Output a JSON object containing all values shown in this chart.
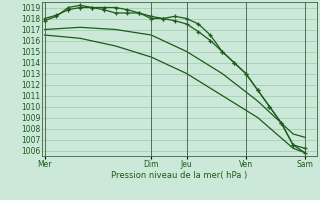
{
  "xlabel": "Pression niveau de la mer( hPa )",
  "bg_color": "#cce8d8",
  "grid_color": "#99ccaa",
  "line_color": "#1a5c1a",
  "ylim": [
    1005.5,
    1019.5
  ],
  "yticks": [
    1006,
    1007,
    1008,
    1009,
    1010,
    1011,
    1012,
    1013,
    1014,
    1015,
    1016,
    1017,
    1018,
    1019
  ],
  "day_labels": [
    "Mer",
    "Dim",
    "Jeu",
    "Ven",
    "Sam"
  ],
  "day_positions": [
    0,
    18,
    24,
    34,
    44
  ],
  "xlim": [
    -0.5,
    46
  ],
  "series": [
    {
      "x": [
        0,
        2,
        4,
        6,
        8,
        10,
        12,
        14,
        16,
        18,
        20,
        22,
        24,
        26,
        28,
        30,
        32,
        34,
        36,
        38,
        40,
        42,
        44
      ],
      "y": [
        1017.8,
        1018.2,
        1019.0,
        1019.2,
        1019.0,
        1019.0,
        1019.0,
        1018.8,
        1018.5,
        1018.0,
        1018.0,
        1018.2,
        1018.0,
        1017.5,
        1016.5,
        1015.0,
        1014.0,
        1013.0,
        1011.5,
        1010.0,
        1008.5,
        1006.5,
        1005.8
      ],
      "marker": true
    },
    {
      "x": [
        0,
        2,
        4,
        6,
        8,
        10,
        12,
        14,
        16,
        18,
        20,
        22,
        24,
        26,
        28,
        30,
        32,
        34,
        36,
        38,
        40,
        42,
        44
      ],
      "y": [
        1018.0,
        1018.3,
        1018.8,
        1019.0,
        1019.0,
        1018.8,
        1018.5,
        1018.5,
        1018.5,
        1018.2,
        1018.0,
        1017.8,
        1017.5,
        1016.8,
        1016.0,
        1015.0,
        1014.0,
        1013.0,
        1011.5,
        1010.0,
        1008.5,
        1006.5,
        1006.2
      ],
      "marker": true
    },
    {
      "x": [
        0,
        6,
        12,
        18,
        24,
        30,
        36,
        42,
        44
      ],
      "y": [
        1017.0,
        1017.2,
        1017.0,
        1016.5,
        1015.0,
        1013.0,
        1010.5,
        1007.5,
        1007.2
      ],
      "marker": false
    },
    {
      "x": [
        0,
        6,
        12,
        18,
        24,
        30,
        36,
        42,
        44
      ],
      "y": [
        1016.5,
        1016.2,
        1015.5,
        1014.5,
        1013.0,
        1011.0,
        1009.0,
        1006.2,
        1005.8
      ],
      "marker": false
    }
  ]
}
